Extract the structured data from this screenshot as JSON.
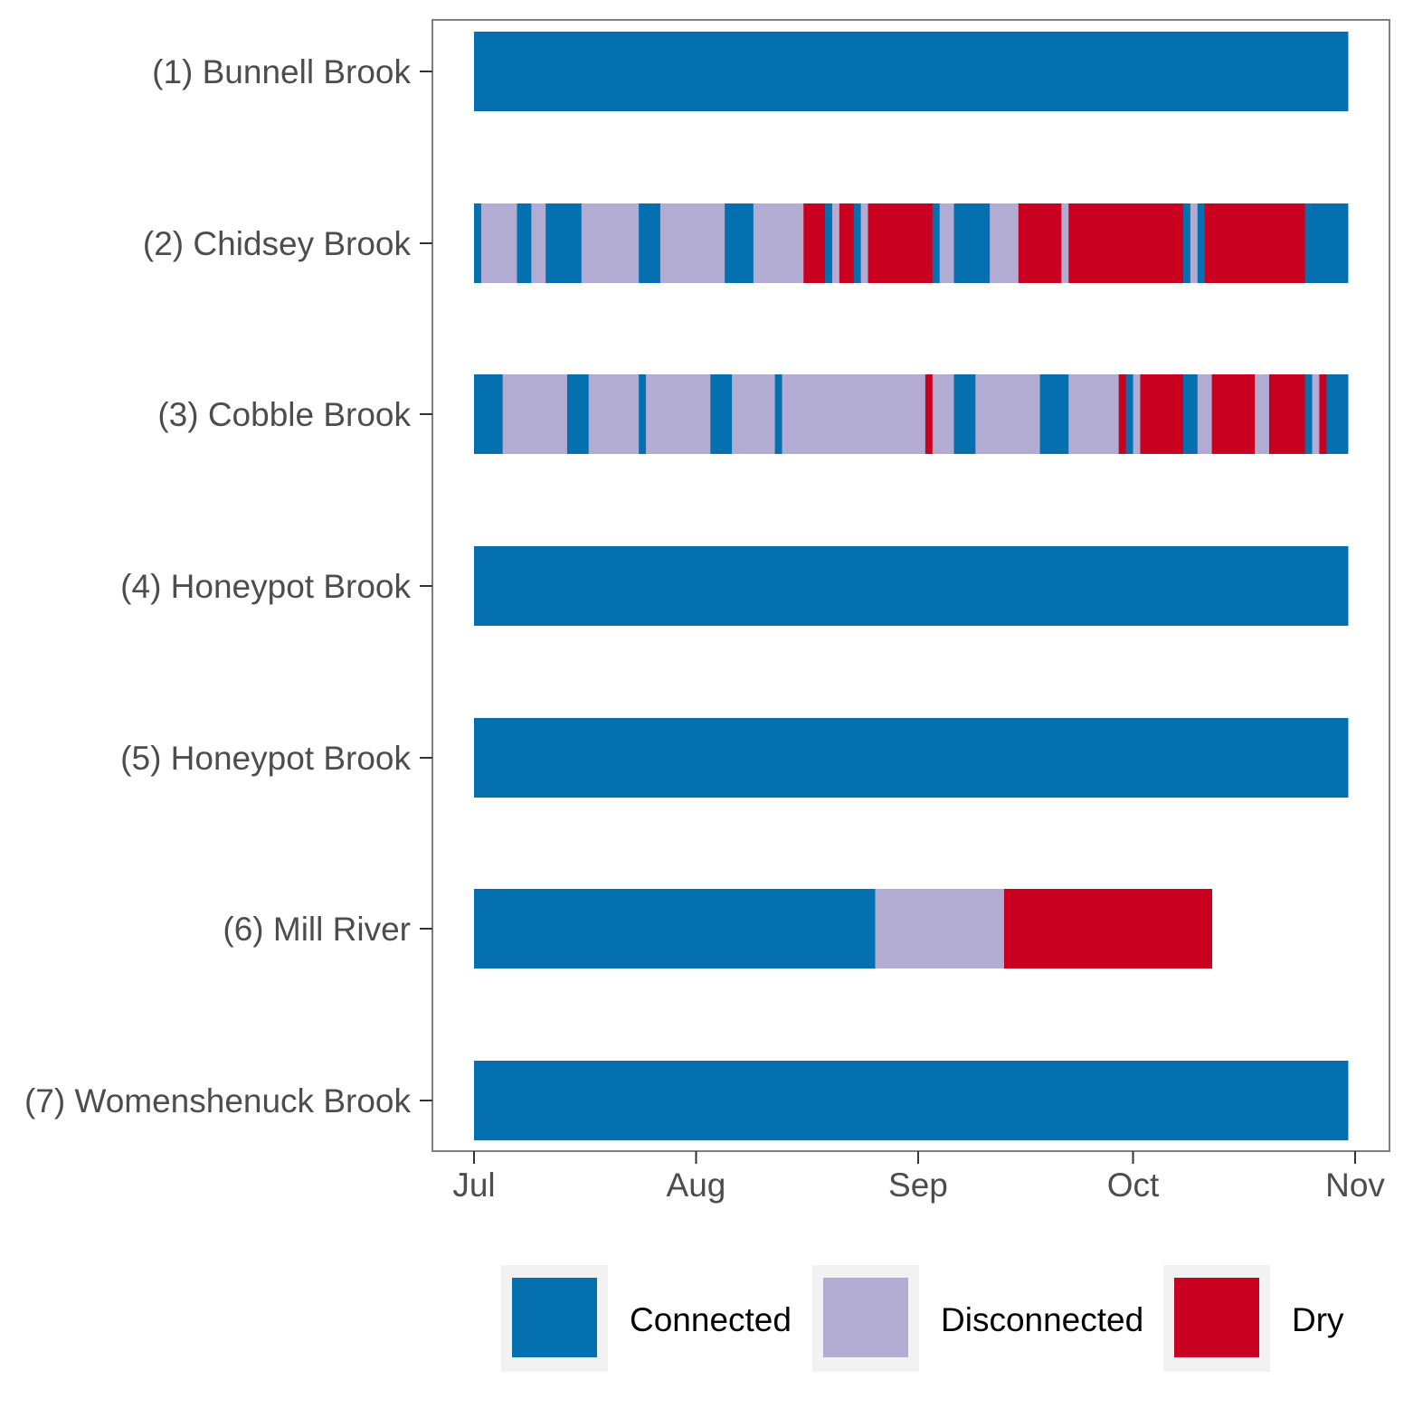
{
  "chart_data": {
    "type": "bar",
    "orientation": "horizontal-timeline",
    "title": "",
    "xlabel": "",
    "ylabel": "",
    "x_ticks": [
      "Jul",
      "Aug",
      "Sep",
      "Oct",
      "Nov"
    ],
    "x_range": [
      "2021-07-01",
      "2021-11-01"
    ],
    "grid": false,
    "legend_position": "bottom",
    "legend": [
      {
        "key": "connected",
        "label": "Connected",
        "color": "#0570b0"
      },
      {
        "key": "disconnected",
        "label": "Disconnected",
        "color": "#b2abd2"
      },
      {
        "key": "dry",
        "label": "Dry",
        "color": "#ca0020"
      }
    ],
    "categories": [
      "(1) Bunnell Brook",
      "(2) Chidsey Brook",
      "(3) Cobble Brook",
      "(4) Honeypot Brook",
      "(5) Honeypot Brook",
      "(6) Mill River",
      "(7) Womenshenuck Brook"
    ],
    "series": [
      {
        "category": "(1) Bunnell Brook",
        "segments": [
          {
            "start": "2021-07-01",
            "end": "2021-10-31",
            "state": "connected"
          }
        ]
      },
      {
        "category": "(2) Chidsey Brook",
        "segments": [
          {
            "start": "2021-07-01",
            "end": "2021-07-02",
            "state": "connected"
          },
          {
            "start": "2021-07-02",
            "end": "2021-07-07",
            "state": "disconnected"
          },
          {
            "start": "2021-07-07",
            "end": "2021-07-09",
            "state": "connected"
          },
          {
            "start": "2021-07-09",
            "end": "2021-07-11",
            "state": "disconnected"
          },
          {
            "start": "2021-07-11",
            "end": "2021-07-16",
            "state": "connected"
          },
          {
            "start": "2021-07-16",
            "end": "2021-07-24",
            "state": "disconnected"
          },
          {
            "start": "2021-07-24",
            "end": "2021-07-27",
            "state": "connected"
          },
          {
            "start": "2021-07-27",
            "end": "2021-08-05",
            "state": "disconnected"
          },
          {
            "start": "2021-08-05",
            "end": "2021-08-09",
            "state": "connected"
          },
          {
            "start": "2021-08-09",
            "end": "2021-08-16",
            "state": "disconnected"
          },
          {
            "start": "2021-08-16",
            "end": "2021-08-19",
            "state": "dry"
          },
          {
            "start": "2021-08-19",
            "end": "2021-08-20",
            "state": "connected"
          },
          {
            "start": "2021-08-20",
            "end": "2021-08-21",
            "state": "disconnected"
          },
          {
            "start": "2021-08-21",
            "end": "2021-08-23",
            "state": "dry"
          },
          {
            "start": "2021-08-23",
            "end": "2021-08-24",
            "state": "connected"
          },
          {
            "start": "2021-08-24",
            "end": "2021-08-25",
            "state": "disconnected"
          },
          {
            "start": "2021-08-25",
            "end": "2021-09-03",
            "state": "dry"
          },
          {
            "start": "2021-09-03",
            "end": "2021-09-04",
            "state": "connected"
          },
          {
            "start": "2021-09-04",
            "end": "2021-09-06",
            "state": "disconnected"
          },
          {
            "start": "2021-09-06",
            "end": "2021-09-11",
            "state": "connected"
          },
          {
            "start": "2021-09-11",
            "end": "2021-09-15",
            "state": "disconnected"
          },
          {
            "start": "2021-09-15",
            "end": "2021-09-21",
            "state": "dry"
          },
          {
            "start": "2021-09-21",
            "end": "2021-09-22",
            "state": "disconnected"
          },
          {
            "start": "2021-09-22",
            "end": "2021-10-08",
            "state": "dry"
          },
          {
            "start": "2021-10-08",
            "end": "2021-10-09",
            "state": "connected"
          },
          {
            "start": "2021-10-09",
            "end": "2021-10-10",
            "state": "disconnected"
          },
          {
            "start": "2021-10-10",
            "end": "2021-10-11",
            "state": "connected"
          },
          {
            "start": "2021-10-11",
            "end": "2021-10-25",
            "state": "dry"
          },
          {
            "start": "2021-10-25",
            "end": "2021-10-31",
            "state": "connected"
          }
        ]
      },
      {
        "category": "(3) Cobble Brook",
        "segments": [
          {
            "start": "2021-07-01",
            "end": "2021-07-05",
            "state": "connected"
          },
          {
            "start": "2021-07-05",
            "end": "2021-07-14",
            "state": "disconnected"
          },
          {
            "start": "2021-07-14",
            "end": "2021-07-17",
            "state": "connected"
          },
          {
            "start": "2021-07-17",
            "end": "2021-07-24",
            "state": "disconnected"
          },
          {
            "start": "2021-07-24",
            "end": "2021-07-25",
            "state": "connected"
          },
          {
            "start": "2021-07-25",
            "end": "2021-08-03",
            "state": "disconnected"
          },
          {
            "start": "2021-08-03",
            "end": "2021-08-06",
            "state": "connected"
          },
          {
            "start": "2021-08-06",
            "end": "2021-08-12",
            "state": "disconnected"
          },
          {
            "start": "2021-08-12",
            "end": "2021-08-13",
            "state": "connected"
          },
          {
            "start": "2021-08-13",
            "end": "2021-09-02",
            "state": "disconnected"
          },
          {
            "start": "2021-09-02",
            "end": "2021-09-03",
            "state": "dry"
          },
          {
            "start": "2021-09-03",
            "end": "2021-09-06",
            "state": "disconnected"
          },
          {
            "start": "2021-09-06",
            "end": "2021-09-09",
            "state": "connected"
          },
          {
            "start": "2021-09-09",
            "end": "2021-09-18",
            "state": "disconnected"
          },
          {
            "start": "2021-09-18",
            "end": "2021-09-22",
            "state": "connected"
          },
          {
            "start": "2021-09-22",
            "end": "2021-09-29",
            "state": "disconnected"
          },
          {
            "start": "2021-09-29",
            "end": "2021-09-30",
            "state": "dry"
          },
          {
            "start": "2021-09-30",
            "end": "2021-10-01",
            "state": "connected"
          },
          {
            "start": "2021-10-01",
            "end": "2021-10-02",
            "state": "disconnected"
          },
          {
            "start": "2021-10-02",
            "end": "2021-10-08",
            "state": "dry"
          },
          {
            "start": "2021-10-08",
            "end": "2021-10-10",
            "state": "connected"
          },
          {
            "start": "2021-10-10",
            "end": "2021-10-12",
            "state": "disconnected"
          },
          {
            "start": "2021-10-12",
            "end": "2021-10-18",
            "state": "dry"
          },
          {
            "start": "2021-10-18",
            "end": "2021-10-20",
            "state": "disconnected"
          },
          {
            "start": "2021-10-20",
            "end": "2021-10-25",
            "state": "dry"
          },
          {
            "start": "2021-10-25",
            "end": "2021-10-26",
            "state": "connected"
          },
          {
            "start": "2021-10-26",
            "end": "2021-10-27",
            "state": "disconnected"
          },
          {
            "start": "2021-10-27",
            "end": "2021-10-28",
            "state": "dry"
          },
          {
            "start": "2021-10-28",
            "end": "2021-10-31",
            "state": "connected"
          }
        ]
      },
      {
        "category": "(4) Honeypot Brook",
        "segments": [
          {
            "start": "2021-07-01",
            "end": "2021-10-31",
            "state": "connected"
          }
        ]
      },
      {
        "category": "(5) Honeypot Brook",
        "segments": [
          {
            "start": "2021-07-01",
            "end": "2021-10-31",
            "state": "connected"
          }
        ]
      },
      {
        "category": "(6) Mill River",
        "segments": [
          {
            "start": "2021-07-01",
            "end": "2021-08-26",
            "state": "connected"
          },
          {
            "start": "2021-08-26",
            "end": "2021-09-13",
            "state": "disconnected"
          },
          {
            "start": "2021-09-13",
            "end": "2021-10-12",
            "state": "dry"
          }
        ]
      },
      {
        "category": "(7) Womenshenuck Brook",
        "segments": [
          {
            "start": "2021-07-01",
            "end": "2021-10-31",
            "state": "connected"
          }
        ]
      }
    ]
  }
}
